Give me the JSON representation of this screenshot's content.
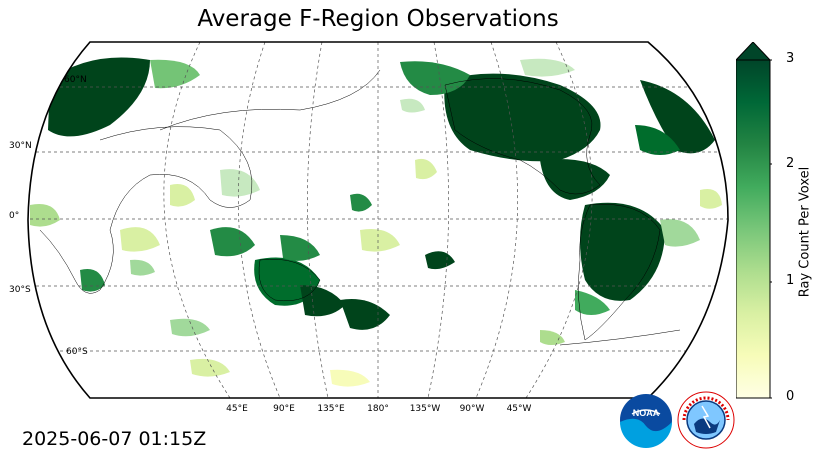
{
  "title": "Average F-Region Observations",
  "timestamp": "2025-06-07 01:15Z",
  "lat_labels": [
    "60°N",
    "30°N",
    "0°",
    "30°S",
    "60°S"
  ],
  "lon_labels": [
    "45°E",
    "90°E",
    "135°E",
    "180°",
    "135°W",
    "90°W",
    "45°W"
  ],
  "colorbar": {
    "label": "Ray Count Per Voxel",
    "ticks": [
      "0",
      "1",
      "2",
      "3"
    ],
    "range": [
      0,
      3
    ],
    "extend": "max",
    "colors": [
      "#ffffe5",
      "#f7fcb9",
      "#d9f0a3",
      "#addd8e",
      "#78c679",
      "#41ab5d",
      "#238443",
      "#006837",
      "#004529"
    ]
  },
  "logos": {
    "noaa_text": "NOAA",
    "nws_text": "NATIONAL WEATHER SERVICE"
  },
  "map": {
    "projection": "Robinson",
    "central_longitude": 180,
    "gridlines": "dashed"
  }
}
